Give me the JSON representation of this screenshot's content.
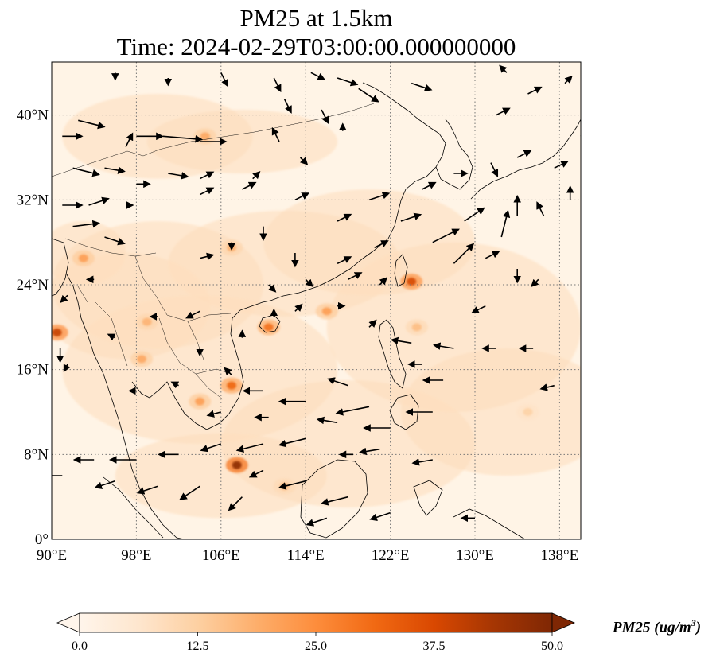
{
  "title": {
    "line1": "PM25 at 1.5km",
    "line2": "Time: 2024-02-29T03:00:00.000000000"
  },
  "map": {
    "projection": "plate-carree",
    "lon_range": [
      90,
      140
    ],
    "lat_range": [
      0,
      45
    ],
    "gridlines": "dotted",
    "lon_ticks": [
      {
        "value": 90,
        "label": "90°E"
      },
      {
        "value": 98,
        "label": "98°E"
      },
      {
        "value": 106,
        "label": "106°E"
      },
      {
        "value": 114,
        "label": "114°E"
      },
      {
        "value": 122,
        "label": "122°E"
      },
      {
        "value": 130,
        "label": "130°E"
      },
      {
        "value": 138,
        "label": "138°E"
      }
    ],
    "lat_ticks": [
      {
        "value": 0,
        "label": "0°"
      },
      {
        "value": 8,
        "label": "8°N"
      },
      {
        "value": 16,
        "label": "16°N"
      },
      {
        "value": 24,
        "label": "24°N"
      },
      {
        "value": 32,
        "label": "32°N"
      },
      {
        "value": 40,
        "label": "40°N"
      }
    ]
  },
  "colorbar": {
    "label": "PM25 (ug/m",
    "label_sup": "3",
    "label_end": ")",
    "min": 0,
    "max": 50,
    "extend": "both",
    "colormap": [
      "#fff5eb",
      "#fee6ce",
      "#fdd0a2",
      "#fdae6b",
      "#fd8d3c",
      "#f16913",
      "#d94801",
      "#a63603",
      "#7f2704"
    ],
    "ticks": [
      {
        "value": 0,
        "label": "0.0"
      },
      {
        "value": 12.5,
        "label": "12.5"
      },
      {
        "value": 25,
        "label": "25.0"
      },
      {
        "value": 37.5,
        "label": "37.5"
      },
      {
        "value": 50,
        "label": "50.0"
      }
    ]
  },
  "hotspots": [
    {
      "lon": 90.5,
      "lat": 19.5,
      "value": 40
    },
    {
      "lon": 107.5,
      "lat": 7.0,
      "value": 48
    },
    {
      "lon": 107.0,
      "lat": 14.5,
      "value": 32
    },
    {
      "lon": 124.0,
      "lat": 24.3,
      "value": 38
    },
    {
      "lon": 110.5,
      "lat": 20.0,
      "value": 30
    },
    {
      "lon": 104.0,
      "lat": 13.0,
      "value": 22
    },
    {
      "lon": 116.0,
      "lat": 21.5,
      "value": 22
    },
    {
      "lon": 104.5,
      "lat": 38.0,
      "value": 20
    },
    {
      "lon": 107.0,
      "lat": 27.5,
      "value": 18
    },
    {
      "lon": 93.0,
      "lat": 26.5,
      "value": 22
    },
    {
      "lon": 124.5,
      "lat": 20.0,
      "value": 16
    },
    {
      "lon": 135.0,
      "lat": 12.0,
      "value": 12
    },
    {
      "lon": 98.5,
      "lat": 17.0,
      "value": 20
    },
    {
      "lon": 99.0,
      "lat": 20.5,
      "value": 18
    },
    {
      "lon": 112.0,
      "lat": 5.0,
      "value": 16
    }
  ],
  "wind_vectors": [
    {
      "lon": 91.0,
      "lat": 38.0,
      "u": 3,
      "v": 0
    },
    {
      "lon": 92.5,
      "lat": 39.5,
      "u": 4,
      "v": -1
    },
    {
      "lon": 97.0,
      "lat": 37.0,
      "u": 1,
      "v": 2
    },
    {
      "lon": 98.0,
      "lat": 38.0,
      "u": 4,
      "v": 0
    },
    {
      "lon": 100.5,
      "lat": 38.0,
      "u": 6,
      "v": -0.5
    },
    {
      "lon": 104.0,
      "lat": 37.5,
      "u": 4,
      "v": 0
    },
    {
      "lon": 92.0,
      "lat": 35.0,
      "u": 4,
      "v": -1
    },
    {
      "lon": 95.0,
      "lat": 35.0,
      "u": 3,
      "v": -0.5
    },
    {
      "lon": 98.0,
      "lat": 33.5,
      "u": 2,
      "v": 0
    },
    {
      "lon": 101.0,
      "lat": 34.5,
      "u": 3,
      "v": -0.5
    },
    {
      "lon": 104.0,
      "lat": 34.0,
      "u": 2,
      "v": 1
    },
    {
      "lon": 91.0,
      "lat": 31.5,
      "u": 3,
      "v": 0
    },
    {
      "lon": 93.5,
      "lat": 31.5,
      "u": 3,
      "v": 1
    },
    {
      "lon": 97.0,
      "lat": 31.5,
      "u": 1,
      "v": 0
    },
    {
      "lon": 92.0,
      "lat": 29.5,
      "u": 4,
      "v": 0.5
    },
    {
      "lon": 95.0,
      "lat": 28.5,
      "u": 3,
      "v": -1
    },
    {
      "lon": 104.0,
      "lat": 32.5,
      "u": 2,
      "v": 1
    },
    {
      "lon": 108.0,
      "lat": 33.0,
      "u": 2,
      "v": 1
    },
    {
      "lon": 104.0,
      "lat": 26.5,
      "u": 2,
      "v": 0.5
    },
    {
      "lon": 94.0,
      "lat": 24.5,
      "u": -1,
      "v": 0
    },
    {
      "lon": 91.5,
      "lat": 23.0,
      "u": -1,
      "v": -1
    },
    {
      "lon": 90.8,
      "lat": 18.0,
      "u": 0,
      "v": -2
    },
    {
      "lon": 91.5,
      "lat": 16.5,
      "u": -0.5,
      "v": -1
    },
    {
      "lon": 96.0,
      "lat": 19.0,
      "u": -1,
      "v": 0.5
    },
    {
      "lon": 100.0,
      "lat": 21.0,
      "u": -1,
      "v": 0
    },
    {
      "lon": 104.0,
      "lat": 21.5,
      "u": -2,
      "v": -1
    },
    {
      "lon": 98.0,
      "lat": 14.0,
      "u": -1,
      "v": 0
    },
    {
      "lon": 102.0,
      "lat": 14.5,
      "u": -1,
      "v": 0.5
    },
    {
      "lon": 110.0,
      "lat": 14.0,
      "u": -3,
      "v": 0
    },
    {
      "lon": 114.0,
      "lat": 13.0,
      "u": -4,
      "v": 0
    },
    {
      "lon": 118.0,
      "lat": 14.5,
      "u": -3,
      "v": 1
    },
    {
      "lon": 120.0,
      "lat": 12.5,
      "u": -5,
      "v": -1
    },
    {
      "lon": 122.0,
      "lat": 10.5,
      "u": -4,
      "v": 0
    },
    {
      "lon": 114.0,
      "lat": 9.5,
      "u": -4,
      "v": -1
    },
    {
      "lon": 110.0,
      "lat": 9.0,
      "u": -4,
      "v": -1
    },
    {
      "lon": 106.0,
      "lat": 9.0,
      "u": -3,
      "v": -1
    },
    {
      "lon": 102.0,
      "lat": 8.0,
      "u": -3,
      "v": 0
    },
    {
      "lon": 98.0,
      "lat": 7.5,
      "u": -4,
      "v": 0
    },
    {
      "lon": 94.0,
      "lat": 7.5,
      "u": -3,
      "v": 0
    },
    {
      "lon": 91.0,
      "lat": 6.0,
      "u": -3,
      "v": 0
    },
    {
      "lon": 96.0,
      "lat": 5.5,
      "u": -3,
      "v": -1
    },
    {
      "lon": 100.0,
      "lat": 5.0,
      "u": -3,
      "v": -1
    },
    {
      "lon": 104.0,
      "lat": 5.0,
      "u": -3,
      "v": -2
    },
    {
      "lon": 108.0,
      "lat": 4.0,
      "u": -2,
      "v": -2
    },
    {
      "lon": 114.0,
      "lat": 5.5,
      "u": -4,
      "v": -1
    },
    {
      "lon": 118.0,
      "lat": 4.0,
      "u": -4,
      "v": -1
    },
    {
      "lon": 122.0,
      "lat": 2.5,
      "u": -3,
      "v": -1
    },
    {
      "lon": 126.0,
      "lat": 7.5,
      "u": -3,
      "v": -0.5
    },
    {
      "lon": 130.0,
      "lat": 2.0,
      "u": -2,
      "v": 0
    },
    {
      "lon": 126.0,
      "lat": 12.0,
      "u": -4,
      "v": 0
    },
    {
      "lon": 127.0,
      "lat": 15.0,
      "u": -3,
      "v": 0
    },
    {
      "lon": 124.0,
      "lat": 18.5,
      "u": -3,
      "v": 0.5
    },
    {
      "lon": 128.0,
      "lat": 18.0,
      "u": -3,
      "v": 0.5
    },
    {
      "lon": 132.0,
      "lat": 18.0,
      "u": -2,
      "v": 0
    },
    {
      "lon": 135.5,
      "lat": 18.0,
      "u": -2,
      "v": 0
    },
    {
      "lon": 137.5,
      "lat": 14.5,
      "u": -2,
      "v": -0.5
    },
    {
      "lon": 131.0,
      "lat": 22.0,
      "u": -2,
      "v": -1
    },
    {
      "lon": 128.0,
      "lat": 26.0,
      "u": 3,
      "v": 3
    },
    {
      "lon": 131.0,
      "lat": 26.5,
      "u": 2,
      "v": 1
    },
    {
      "lon": 134.0,
      "lat": 25.5,
      "u": 0,
      "v": -2
    },
    {
      "lon": 136.0,
      "lat": 24.5,
      "u": -1,
      "v": -1
    },
    {
      "lon": 132.5,
      "lat": 28.5,
      "u": 1,
      "v": 4
    },
    {
      "lon": 134.0,
      "lat": 30.5,
      "u": 0,
      "v": 3
    },
    {
      "lon": 136.5,
      "lat": 30.5,
      "u": -1,
      "v": 2
    },
    {
      "lon": 139.0,
      "lat": 32.0,
      "u": 0,
      "v": 2
    },
    {
      "lon": 129.0,
      "lat": 30.0,
      "u": 3,
      "v": 2
    },
    {
      "lon": 126.0,
      "lat": 28.0,
      "u": 4,
      "v": 2
    },
    {
      "lon": 123.0,
      "lat": 30.0,
      "u": 3,
      "v": 1
    },
    {
      "lon": 120.0,
      "lat": 32.0,
      "u": 3,
      "v": 1
    },
    {
      "lon": 125.0,
      "lat": 33.0,
      "u": 2,
      "v": 1
    },
    {
      "lon": 128.0,
      "lat": 34.5,
      "u": 2,
      "v": 0
    },
    {
      "lon": 131.5,
      "lat": 35.5,
      "u": 1,
      "v": -2
    },
    {
      "lon": 134.0,
      "lat": 36.0,
      "u": 2,
      "v": 1
    },
    {
      "lon": 137.5,
      "lat": 35.0,
      "u": 2,
      "v": 1
    },
    {
      "lon": 140.0,
      "lat": 38.0,
      "u": 1,
      "v": 2
    },
    {
      "lon": 132.0,
      "lat": 40.0,
      "u": 2,
      "v": 1
    },
    {
      "lon": 135.0,
      "lat": 42.0,
      "u": 2,
      "v": 1
    },
    {
      "lon": 138.5,
      "lat": 43.0,
      "u": 1,
      "v": 1
    },
    {
      "lon": 133.0,
      "lat": 44.0,
      "u": -1,
      "v": 1
    },
    {
      "lon": 124.0,
      "lat": 43.0,
      "u": 3,
      "v": -1
    },
    {
      "lon": 119.0,
      "lat": 42.5,
      "u": 3,
      "v": -2
    },
    {
      "lon": 117.0,
      "lat": 43.5,
      "u": 3,
      "v": -1
    },
    {
      "lon": 114.5,
      "lat": 44.0,
      "u": 2,
      "v": -1
    },
    {
      "lon": 111.0,
      "lat": 43.5,
      "u": 1,
      "v": -2
    },
    {
      "lon": 106.0,
      "lat": 44.0,
      "u": 1,
      "v": -2
    },
    {
      "lon": 101.0,
      "lat": 43.5,
      "u": 0,
      "v": -1
    },
    {
      "lon": 96.0,
      "lat": 44.0,
      "u": 0,
      "v": -1
    },
    {
      "lon": 112.0,
      "lat": 41.5,
      "u": 1,
      "v": -2
    },
    {
      "lon": 115.5,
      "lat": 40.5,
      "u": 1,
      "v": -2
    },
    {
      "lon": 111.5,
      "lat": 37.5,
      "u": -1,
      "v": 2
    },
    {
      "lon": 117.5,
      "lat": 38.5,
      "u": 0,
      "v": 1
    },
    {
      "lon": 113.5,
      "lat": 36.0,
      "u": 1,
      "v": -1
    },
    {
      "lon": 109.0,
      "lat": 34.0,
      "u": 1,
      "v": 1
    },
    {
      "lon": 113.0,
      "lat": 32.0,
      "u": 2,
      "v": 1
    },
    {
      "lon": 117.0,
      "lat": 30.0,
      "u": 2,
      "v": 1
    },
    {
      "lon": 120.5,
      "lat": 27.5,
      "u": 2,
      "v": 1
    },
    {
      "lon": 117.0,
      "lat": 26.0,
      "u": 2,
      "v": 1
    },
    {
      "lon": 113.0,
      "lat": 27.0,
      "u": 0,
      "v": -2
    },
    {
      "lon": 110.0,
      "lat": 29.5,
      "u": 0,
      "v": -2
    },
    {
      "lon": 107.0,
      "lat": 28.0,
      "u": 0,
      "v": -1
    },
    {
      "lon": 110.5,
      "lat": 24.0,
      "u": 1,
      "v": -1
    },
    {
      "lon": 114.0,
      "lat": 24.5,
      "u": 1,
      "v": -1
    },
    {
      "lon": 118.0,
      "lat": 24.5,
      "u": 2,
      "v": 1
    },
    {
      "lon": 121.0,
      "lat": 24.0,
      "u": 1,
      "v": 1
    },
    {
      "lon": 113.0,
      "lat": 21.5,
      "u": 1,
      "v": 1
    },
    {
      "lon": 117.0,
      "lat": 22.0,
      "u": 1,
      "v": 0
    },
    {
      "lon": 120.0,
      "lat": 20.0,
      "u": 1,
      "v": 1
    },
    {
      "lon": 111.0,
      "lat": 21.0,
      "u": 0,
      "v": 1
    },
    {
      "lon": 108.0,
      "lat": 19.0,
      "u": 0,
      "v": 1
    },
    {
      "lon": 104.0,
      "lat": 18.0,
      "u": 0,
      "v": -1
    },
    {
      "lon": 107.0,
      "lat": 15.5,
      "u": -1,
      "v": 1
    },
    {
      "lon": 106.0,
      "lat": 12.0,
      "u": -2,
      "v": -0.5
    },
    {
      "lon": 110.5,
      "lat": 11.5,
      "u": -2,
      "v": 0
    },
    {
      "lon": 117.0,
      "lat": 11.0,
      "u": -3,
      "v": 0.5
    },
    {
      "lon": 121.0,
      "lat": 8.5,
      "u": -3,
      "v": -0.5
    },
    {
      "lon": 125.0,
      "lat": 16.5,
      "u": -2,
      "v": 0
    },
    {
      "lon": 118.5,
      "lat": 8.0,
      "u": -2,
      "v": 0
    },
    {
      "lon": 110.0,
      "lat": 6.5,
      "u": -2,
      "v": -1
    },
    {
      "lon": 116.0,
      "lat": 2.0,
      "u": -3,
      "v": -1
    }
  ]
}
